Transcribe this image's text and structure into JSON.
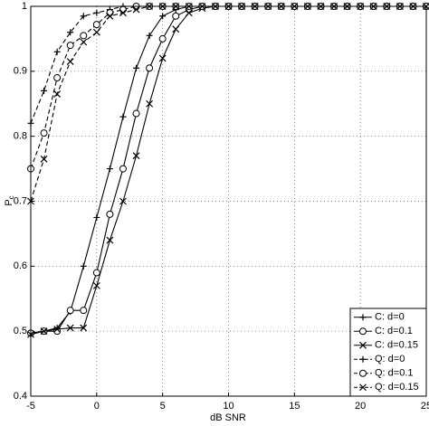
{
  "chart_data": {
    "type": "line",
    "xlabel": "dB SNR",
    "ylabel": {
      "main": "P",
      "sub": "c"
    },
    "x": [
      -5,
      -4,
      -3,
      -2,
      -1,
      0,
      1,
      2,
      3,
      4,
      5,
      6,
      7,
      8,
      9,
      10,
      11,
      12,
      13,
      14,
      15,
      16,
      17,
      18,
      19,
      20,
      21,
      22,
      23,
      24,
      25
    ],
    "xlim": [
      -5,
      25
    ],
    "xticks": [
      -5,
      0,
      5,
      10,
      15,
      20,
      25
    ],
    "ylim": [
      0.4,
      1
    ],
    "yticks": [
      0.4,
      0.5,
      0.6,
      0.7,
      0.8,
      0.9,
      1
    ],
    "grid": true,
    "legend": "lower right",
    "series": [
      {
        "name": "C: d=0",
        "color": "#000000",
        "marker": "+",
        "dashed": false,
        "values": [
          0.497,
          0.5,
          0.505,
          0.53,
          0.6,
          0.675,
          0.75,
          0.83,
          0.905,
          0.955,
          0.985,
          0.995,
          1,
          1,
          1,
          1,
          1,
          1,
          1,
          1,
          1,
          1,
          1,
          1,
          1,
          1,
          1,
          1,
          1,
          1,
          1
        ]
      },
      {
        "name": "C: d=0.1",
        "color": "#000000",
        "marker": "o",
        "dashed": false,
        "values": [
          0.497,
          0.5,
          0.5,
          0.532,
          0.532,
          0.59,
          0.68,
          0.75,
          0.835,
          0.905,
          0.95,
          0.985,
          0.995,
          1,
          1,
          1,
          1,
          1,
          1,
          1,
          1,
          1,
          1,
          1,
          1,
          1,
          1,
          1,
          1,
          1,
          1
        ]
      },
      {
        "name": "C: d=0.15",
        "color": "#000000",
        "marker": "x",
        "dashed": false,
        "values": [
          0.495,
          0.5,
          0.503,
          0.505,
          0.505,
          0.57,
          0.64,
          0.7,
          0.77,
          0.85,
          0.92,
          0.965,
          0.99,
          0.997,
          1,
          1,
          1,
          1,
          1,
          1,
          1,
          1,
          1,
          1,
          1,
          1,
          1,
          1,
          1,
          1,
          1
        ]
      },
      {
        "name": "Q: d=0",
        "color": "#000000",
        "marker": "+",
        "dashed": true,
        "values": [
          0.82,
          0.87,
          0.93,
          0.96,
          0.985,
          0.99,
          0.995,
          1,
          1,
          1,
          1,
          1,
          1,
          1,
          1,
          1,
          1,
          1,
          1,
          1,
          1,
          1,
          1,
          1,
          1,
          1,
          1,
          1,
          1,
          1,
          1
        ]
      },
      {
        "name": "Q: d=0.1",
        "color": "#000000",
        "marker": "o",
        "dashed": true,
        "values": [
          0.75,
          0.805,
          0.89,
          0.94,
          0.955,
          0.972,
          0.99,
          0.995,
          1,
          1,
          1,
          1,
          1,
          1,
          1,
          1,
          1,
          1,
          1,
          1,
          1,
          1,
          1,
          1,
          1,
          1,
          1,
          1,
          1,
          1,
          1
        ]
      },
      {
        "name": "Q: d=0.15",
        "color": "#000000",
        "marker": "x",
        "dashed": true,
        "values": [
          0.7,
          0.765,
          0.865,
          0.915,
          0.945,
          0.96,
          0.985,
          0.99,
          0.995,
          1,
          1,
          1,
          1,
          1,
          1,
          1,
          1,
          1,
          1,
          1,
          1,
          1,
          1,
          1,
          1,
          1,
          1,
          1,
          1,
          1,
          1
        ]
      }
    ]
  }
}
